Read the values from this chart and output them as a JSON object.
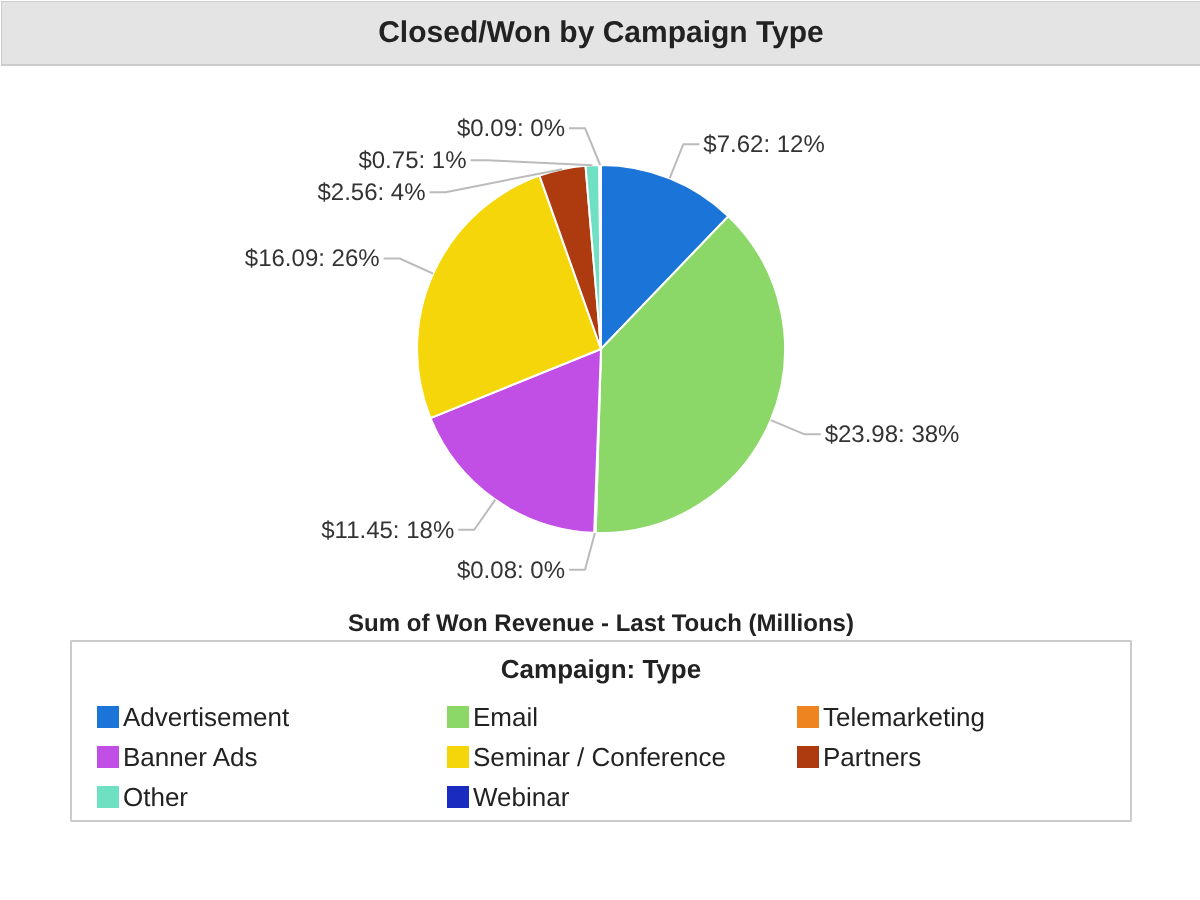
{
  "chart_data": {
    "type": "pie",
    "title": "Closed/Won by Campaign Type",
    "xlabel": "Sum of Won Revenue - Last Touch (Millions)",
    "legend_title": "Campaign: Type",
    "legend": "bottom",
    "categories": [
      "Advertisement",
      "Email",
      "Telemarketing",
      "Banner Ads",
      "Seminar / Conference",
      "Partners",
      "Other",
      "Webinar"
    ],
    "values": [
      7.62,
      23.98,
      0.08,
      11.45,
      16.09,
      2.56,
      0.75,
      0.09
    ],
    "colors": [
      "#1b74d8",
      "#8bd768",
      "#ee8420",
      "#c14fe6",
      "#f4d60a",
      "#ae3a10",
      "#6fe0c2",
      "#1a2bbf"
    ],
    "value_labels": [
      "$7.62: 12%",
      "$23.98: 38%",
      "$0.08: 0%",
      "$11.45: 18%",
      "$16.09: 26%",
      "$2.56: 4%",
      "$0.75: 1%",
      "$0.09: 0%"
    ]
  }
}
